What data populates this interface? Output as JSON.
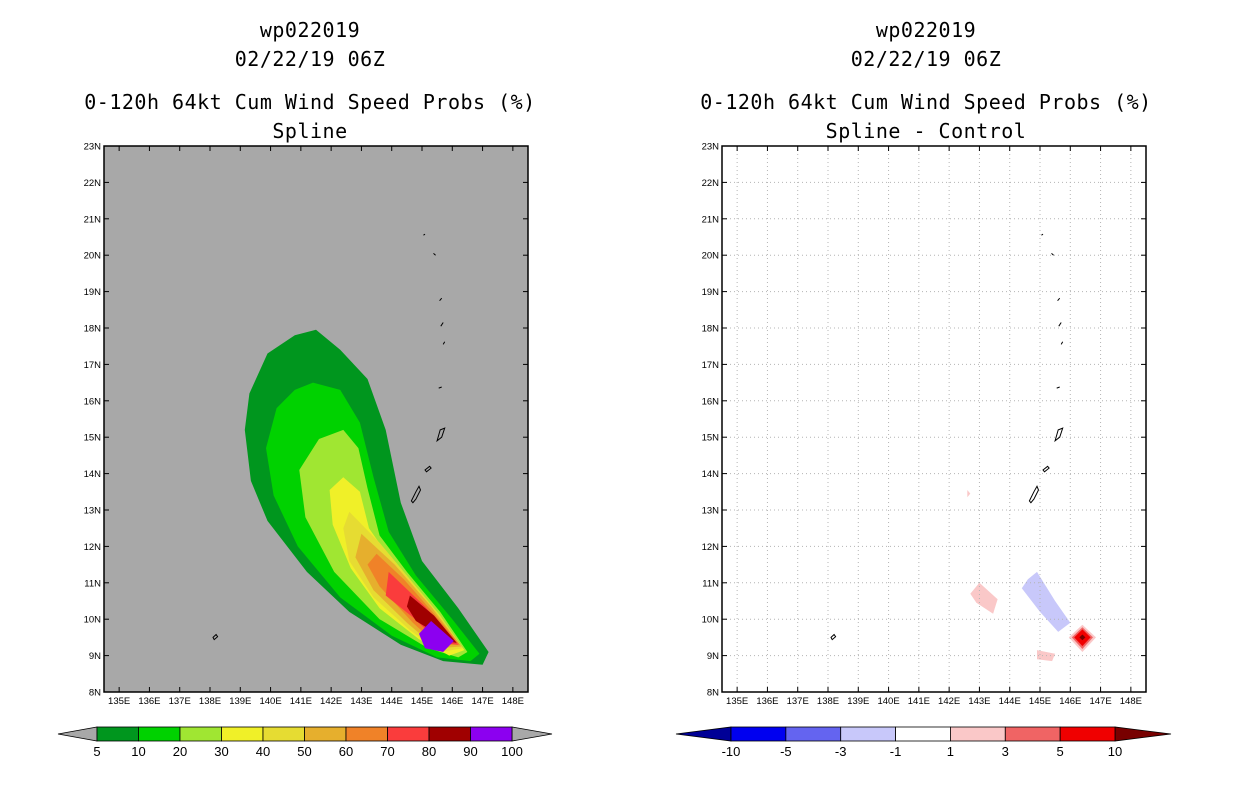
{
  "panels": [
    {
      "storm_id": "wp022019",
      "datetime": "02/22/19 06Z",
      "product": "0-120h 64kt Cum Wind Speed Probs (%)",
      "subtitle": "Spline"
    },
    {
      "storm_id": "wp022019",
      "datetime": "02/22/19 06Z",
      "product": "0-120h 64kt Cum Wind Speed Probs (%)",
      "subtitle": "Spline - Control"
    }
  ],
  "axes": {
    "lon_ticks": [
      "135E",
      "136E",
      "137E",
      "138E",
      "139E",
      "140E",
      "141E",
      "142E",
      "143E",
      "144E",
      "145E",
      "146E",
      "147E",
      "148E"
    ],
    "lat_ticks": [
      "8N",
      "9N",
      "10N",
      "11N",
      "12N",
      "13N",
      "14N",
      "15N",
      "16N",
      "17N",
      "18N",
      "19N",
      "20N",
      "21N",
      "22N",
      "23N"
    ],
    "lon_range": [
      134.5,
      148.5
    ],
    "lat_range": [
      8,
      23
    ]
  },
  "chart_data": [
    {
      "type": "filled-contour",
      "title": "Spline",
      "units": "%",
      "background_color": "#a8a8a8",
      "legend": {
        "labels": [
          "5",
          "10",
          "20",
          "30",
          "40",
          "50",
          "60",
          "70",
          "80",
          "90",
          "100"
        ],
        "colors": [
          "#00961e",
          "#00d200",
          "#a0e632",
          "#f0f028",
          "#e6dc32",
          "#e6af2d",
          "#f08228",
          "#fa3c3c",
          "#a00000",
          "#8c00f0"
        ],
        "arrow_colors": [
          "#a8a8a8",
          "#a8a8a8"
        ]
      },
      "levels": [
        {
          "min": 5,
          "color": "#00961e",
          "polygon": [
            [
              141.5,
              17.95
            ],
            [
              142.3,
              17.4
            ],
            [
              143.2,
              16.6
            ],
            [
              143.8,
              15.2
            ],
            [
              144.3,
              13.2
            ],
            [
              145.0,
              11.6
            ],
            [
              146.2,
              10.3
            ],
            [
              147.2,
              9.1
            ],
            [
              147.0,
              8.75
            ],
            [
              145.7,
              8.85
            ],
            [
              144.3,
              9.3
            ],
            [
              142.6,
              10.2
            ],
            [
              141.2,
              11.3
            ],
            [
              139.9,
              12.7
            ],
            [
              139.35,
              13.8
            ],
            [
              139.15,
              15.2
            ],
            [
              139.3,
              16.2
            ],
            [
              139.9,
              17.3
            ],
            [
              140.8,
              17.8
            ]
          ]
        },
        {
          "min": 10,
          "color": "#00d200",
          "polygon": [
            [
              141.4,
              16.5
            ],
            [
              142.3,
              16.3
            ],
            [
              142.95,
              15.4
            ],
            [
              143.4,
              13.9
            ],
            [
              143.9,
              12.4
            ],
            [
              144.8,
              11.2
            ],
            [
              146.0,
              10.0
            ],
            [
              146.9,
              9.05
            ],
            [
              146.6,
              8.85
            ],
            [
              145.5,
              8.95
            ],
            [
              144.0,
              9.55
            ],
            [
              142.3,
              10.6
            ],
            [
              140.9,
              12.0
            ],
            [
              140.1,
              13.4
            ],
            [
              139.85,
              14.7
            ],
            [
              140.2,
              15.8
            ],
            [
              140.8,
              16.3
            ]
          ]
        },
        {
          "min": 20,
          "color": "#a0e632",
          "polygon": [
            [
              142.4,
              15.2
            ],
            [
              142.9,
              14.7
            ],
            [
              143.2,
              13.6
            ],
            [
              143.6,
              12.3
            ],
            [
              144.5,
              11.3
            ],
            [
              145.6,
              10.2
            ],
            [
              146.5,
              9.1
            ],
            [
              146.2,
              8.95
            ],
            [
              145.2,
              9.2
            ],
            [
              143.6,
              10.0
            ],
            [
              142.1,
              11.3
            ],
            [
              141.15,
              12.8
            ],
            [
              140.95,
              14.1
            ],
            [
              141.6,
              14.95
            ]
          ]
        },
        {
          "min": 30,
          "color": "#f0f028",
          "polygon": [
            [
              142.4,
              13.9
            ],
            [
              142.95,
              13.5
            ],
            [
              143.25,
              12.5
            ],
            [
              144.0,
              11.6
            ],
            [
              145.2,
              10.45
            ],
            [
              146.4,
              9.15
            ],
            [
              145.9,
              9.0
            ],
            [
              144.9,
              9.45
            ],
            [
              143.6,
              10.3
            ],
            [
              142.65,
              11.4
            ],
            [
              142.05,
              12.6
            ],
            [
              141.95,
              13.55
            ]
          ]
        },
        {
          "min": 40,
          "color": "#e6dc32",
          "polygon": [
            [
              142.6,
              12.95
            ],
            [
              143.6,
              12.1
            ],
            [
              144.5,
              11.2
            ],
            [
              145.6,
              10.1
            ],
            [
              146.35,
              9.2
            ],
            [
              145.6,
              9.1
            ],
            [
              144.6,
              9.7
            ],
            [
              143.4,
              10.6
            ],
            [
              142.6,
              11.6
            ],
            [
              142.4,
              12.5
            ]
          ]
        },
        {
          "min": 50,
          "color": "#e6af2d",
          "polygon": [
            [
              143.0,
              12.35
            ],
            [
              144.1,
              11.5
            ],
            [
              145.3,
              10.35
            ],
            [
              146.3,
              9.25
            ],
            [
              145.5,
              9.2
            ],
            [
              144.5,
              9.9
            ],
            [
              143.4,
              10.8
            ],
            [
              142.8,
              11.7
            ]
          ]
        },
        {
          "min": 60,
          "color": "#f08228",
          "polygon": [
            [
              143.5,
              11.8
            ],
            [
              144.4,
              11.1
            ],
            [
              145.4,
              10.15
            ],
            [
              146.25,
              9.3
            ],
            [
              145.5,
              9.3
            ],
            [
              144.7,
              9.9
            ],
            [
              143.6,
              10.9
            ],
            [
              143.2,
              11.5
            ]
          ]
        },
        {
          "min": 70,
          "color": "#fa3c3c",
          "polygon": [
            [
              143.9,
              11.3
            ],
            [
              145.1,
              10.35
            ],
            [
              146.2,
              9.3
            ],
            [
              145.6,
              9.35
            ],
            [
              144.7,
              10.05
            ],
            [
              143.8,
              10.65
            ]
          ]
        },
        {
          "min": 80,
          "color": "#a00000",
          "polygon": [
            [
              144.6,
              10.65
            ],
            [
              145.4,
              10.1
            ],
            [
              146.15,
              9.35
            ],
            [
              145.8,
              9.4
            ],
            [
              145.3,
              9.7
            ],
            [
              144.8,
              9.95
            ],
            [
              144.5,
              10.35
            ]
          ]
        },
        {
          "min": 90,
          "color": "#8c00f0",
          "polygon": [
            [
              145.3,
              9.95
            ],
            [
              146.05,
              9.4
            ],
            [
              145.7,
              9.1
            ],
            [
              145.1,
              9.2
            ],
            [
              144.9,
              9.6
            ]
          ]
        }
      ]
    },
    {
      "type": "filled-contour",
      "title": "Spline - Control",
      "units": "%",
      "background_color": "#ffffff",
      "legend": {
        "labels": [
          "-10",
          "-5",
          "-3",
          "-1",
          "1",
          "3",
          "5",
          "10"
        ],
        "colors": [
          "#0000f0",
          "#6464f0",
          "#c8c8fa",
          "#ffffff",
          "#fac8c8",
          "#f06464",
          "#f00000"
        ],
        "arrow_colors": [
          "#000096",
          "#780000"
        ]
      },
      "levels": [
        {
          "min": -3,
          "color": "#c8c8fa",
          "polygon": [
            [
              144.9,
              11.3
            ],
            [
              145.5,
              10.5
            ],
            [
              146.0,
              9.9
            ],
            [
              145.6,
              9.65
            ],
            [
              145.0,
              10.2
            ],
            [
              144.4,
              10.85
            ],
            [
              144.6,
              11.1
            ]
          ]
        },
        {
          "min": 1,
          "color": "#fac8c8",
          "polygon": [
            [
              143.0,
              11.0
            ],
            [
              143.6,
              10.55
            ],
            [
              143.45,
              10.15
            ],
            [
              142.9,
              10.45
            ],
            [
              142.7,
              10.7
            ]
          ]
        },
        {
          "min": 1,
          "color": "#fac8c8",
          "polygon": [
            [
              144.9,
              9.15
            ],
            [
              145.5,
              9.05
            ],
            [
              145.4,
              8.85
            ],
            [
              144.9,
              8.9
            ]
          ]
        },
        {
          "min": 1,
          "color": "#fac8c8",
          "polygon": [
            [
              142.6,
              13.55
            ],
            [
              142.7,
              13.45
            ],
            [
              142.6,
              13.35
            ]
          ]
        },
        {
          "min": 1,
          "color": "#fac8c8",
          "polygon": [
            [
              146.4,
              9.85
            ],
            [
              146.85,
              9.5
            ],
            [
              146.4,
              9.1
            ],
            [
              145.95,
              9.5
            ]
          ]
        },
        {
          "min": 3,
          "color": "#f06464",
          "polygon": [
            [
              146.4,
              9.78
            ],
            [
              146.75,
              9.5
            ],
            [
              146.4,
              9.18
            ],
            [
              146.05,
              9.5
            ]
          ]
        },
        {
          "min": 5,
          "color": "#f00000",
          "polygon": [
            [
              146.4,
              9.72
            ],
            [
              146.67,
              9.5
            ],
            [
              146.4,
              9.26
            ],
            [
              146.13,
              9.5
            ]
          ]
        },
        {
          "min": 10,
          "color": "#780000",
          "polygon": [
            [
              146.4,
              9.58
            ],
            [
              146.5,
              9.5
            ],
            [
              146.4,
              9.42
            ],
            [
              146.3,
              9.5
            ]
          ]
        }
      ]
    }
  ],
  "islands": [
    [
      [
        138.1,
        9.5
      ],
      [
        138.2,
        9.58
      ],
      [
        138.25,
        9.52
      ],
      [
        138.14,
        9.44
      ]
    ],
    [
      [
        144.65,
        13.25
      ],
      [
        144.8,
        13.5
      ],
      [
        144.9,
        13.65
      ],
      [
        144.95,
        13.55
      ],
      [
        144.8,
        13.3
      ],
      [
        144.7,
        13.2
      ]
    ],
    [
      [
        145.1,
        14.1
      ],
      [
        145.25,
        14.2
      ],
      [
        145.3,
        14.15
      ],
      [
        145.15,
        14.05
      ]
    ],
    [
      [
        145.5,
        14.9
      ],
      [
        145.6,
        15.2
      ],
      [
        145.75,
        15.25
      ],
      [
        145.65,
        15.0
      ]
    ],
    [
      [
        145.55,
        16.35
      ],
      [
        145.65,
        16.38
      ]
    ],
    [
      [
        145.7,
        17.55
      ],
      [
        145.75,
        17.62
      ]
    ],
    [
      [
        145.62,
        18.05
      ],
      [
        145.7,
        18.15
      ]
    ],
    [
      [
        145.58,
        18.75
      ],
      [
        145.65,
        18.82
      ]
    ],
    [
      [
        145.38,
        20.05
      ],
      [
        145.45,
        20.0
      ]
    ],
    [
      [
        145.05,
        20.55
      ],
      [
        145.1,
        20.58
      ]
    ]
  ]
}
